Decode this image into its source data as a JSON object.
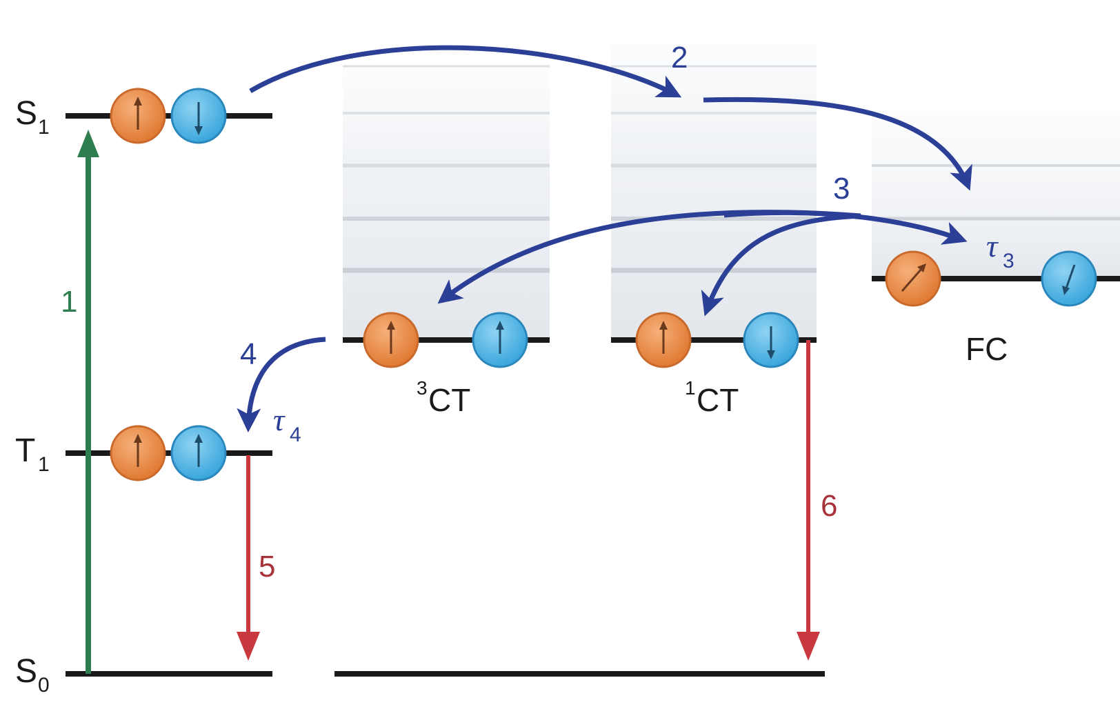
{
  "levels": {
    "s1": {
      "main": "S",
      "sub": "1"
    },
    "t1": {
      "main": "T",
      "sub": "1"
    },
    "s0": {
      "main": "S",
      "sub": "0"
    }
  },
  "transitions": {
    "t1": "1",
    "t2": "2",
    "t3": "3",
    "t4": "4",
    "t5": "5",
    "t6": "6"
  },
  "tau3": {
    "symbol": "τ",
    "sub": "3"
  },
  "tau4": {
    "symbol": "τ",
    "sub": "4"
  },
  "states": {
    "ct3": {
      "sup": "3",
      "label": "CT"
    },
    "ct1": {
      "sup": "1",
      "label": "CT"
    },
    "fc": {
      "label": "FC"
    }
  },
  "colors": {
    "excitation": "#2e7d4f",
    "transfer": "#2b3f96",
    "emission": "#c8393f",
    "spin_a": "#e8873e",
    "spin_b": "#4fb3e3",
    "level_line": "#1a1a1a"
  }
}
